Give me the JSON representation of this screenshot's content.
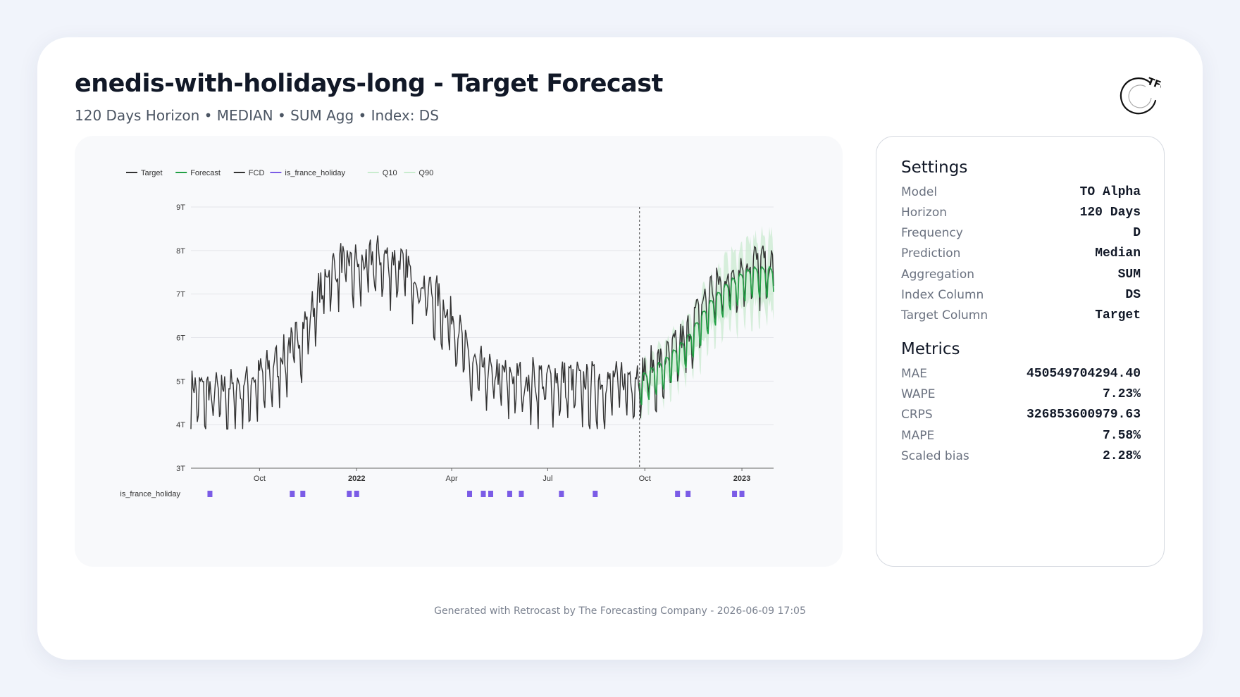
{
  "header": {
    "title": "enedis-with-holidays-long - Target Forecast",
    "subtitle": "120 Days Horizon • MEDIAN • SUM Agg • Index: DS",
    "logo_text": "TFC"
  },
  "settings": {
    "title": "Settings",
    "rows": [
      {
        "label": "Model",
        "value": "TO Alpha"
      },
      {
        "label": "Horizon",
        "value": "120 Days"
      },
      {
        "label": "Frequency",
        "value": "D"
      },
      {
        "label": "Prediction",
        "value": "Median"
      },
      {
        "label": "Aggregation",
        "value": "SUM"
      },
      {
        "label": "Index Column",
        "value": "DS"
      },
      {
        "label": "Target Column",
        "value": "Target"
      }
    ]
  },
  "metrics": {
    "title": "Metrics",
    "rows": [
      {
        "label": "MAE",
        "value": "450549704294.40"
      },
      {
        "label": "WAPE",
        "value": "7.23%"
      },
      {
        "label": "CRPS",
        "value": "326853600979.63"
      },
      {
        "label": "MAPE",
        "value": "7.58%"
      },
      {
        "label": "Scaled bias",
        "value": "2.28%"
      }
    ]
  },
  "footer": "Generated with Retrocast by The Forecasting Company - 2026-06-09 17:05",
  "chart_data": {
    "type": "line",
    "legend": [
      {
        "name": "Target",
        "color": "#333333"
      },
      {
        "name": "Forecast",
        "color": "#22a045"
      },
      {
        "name": "FCD",
        "color": "#333333"
      },
      {
        "name": "is_france_holiday",
        "color": "#7b5ce6"
      },
      {
        "name": "Q10",
        "color": "#c9eccf"
      },
      {
        "name": "Q90",
        "color": "#c9eccf"
      }
    ],
    "legend_position": "top-left",
    "grid": true,
    "y_ticks": [
      "3T",
      "4T",
      "5T",
      "6T",
      "7T",
      "8T",
      "9T"
    ],
    "y_tick_values": [
      3,
      4,
      5,
      6,
      7,
      8,
      9
    ],
    "ylim": [
      3,
      9
    ],
    "x_ticks": [
      {
        "label": "Oct",
        "date": "2021-10-01",
        "bold": false
      },
      {
        "label": "2022",
        "date": "2022-01-01",
        "bold": true
      },
      {
        "label": "Apr",
        "date": "2022-04-01",
        "bold": false
      },
      {
        "label": "Jul",
        "date": "2022-07-01",
        "bold": false
      },
      {
        "label": "Oct",
        "date": "2022-10-01",
        "bold": false
      },
      {
        "label": "2023",
        "date": "2023-01-01",
        "bold": true
      }
    ],
    "x_start": "2021-07-28",
    "x_end": "2023-01-31",
    "fcd_date": "2022-09-26",
    "holiday_track_label": "is_france_holiday",
    "holidays": [
      "2021-08-15",
      "2021-11-01",
      "2021-11-11",
      "2021-12-25",
      "2022-01-01",
      "2022-04-18",
      "2022-05-01",
      "2022-05-08",
      "2022-05-26",
      "2022-06-06",
      "2022-07-14",
      "2022-08-15",
      "2022-11-01",
      "2022-11-11",
      "2022-12-25",
      "2023-01-01"
    ],
    "target_anchors": [
      [
        "2021-07-28",
        4.7
      ],
      [
        "2021-08-25",
        4.6
      ],
      [
        "2021-09-20",
        4.8
      ],
      [
        "2021-10-10",
        5.1
      ],
      [
        "2021-10-25",
        5.5
      ],
      [
        "2021-11-10",
        6.0
      ],
      [
        "2021-11-22",
        6.6
      ],
      [
        "2021-12-05",
        7.4
      ],
      [
        "2021-12-20",
        7.6
      ],
      [
        "2022-01-05",
        7.5
      ],
      [
        "2022-01-20",
        7.7
      ],
      [
        "2022-02-10",
        7.6
      ],
      [
        "2022-03-01",
        7.2
      ],
      [
        "2022-03-20",
        6.7
      ],
      [
        "2022-04-05",
        6.2
      ],
      [
        "2022-04-20",
        5.2
      ],
      [
        "2022-05-15",
        5.0
      ],
      [
        "2022-06-15",
        4.9
      ],
      [
        "2022-07-15",
        4.9
      ],
      [
        "2022-08-15",
        4.8
      ],
      [
        "2022-09-10",
        4.9
      ],
      [
        "2022-09-26",
        5.0
      ],
      [
        "2022-10-20",
        5.3
      ],
      [
        "2022-11-10",
        5.9
      ],
      [
        "2022-12-01",
        6.9
      ],
      [
        "2022-12-20",
        7.3
      ],
      [
        "2023-01-10",
        7.6
      ],
      [
        "2023-01-31",
        7.5
      ]
    ],
    "target_amplitude": 0.55,
    "forecast_anchors": [
      [
        "2022-09-26",
        4.9
      ],
      [
        "2022-10-20",
        5.3
      ],
      [
        "2022-11-10",
        5.8
      ],
      [
        "2022-12-01",
        6.6
      ],
      [
        "2022-12-20",
        7.1
      ],
      [
        "2023-01-10",
        7.4
      ],
      [
        "2023-01-31",
        7.4
      ]
    ],
    "forecast_amplitude": 0.4,
    "band_width": 0.55
  }
}
